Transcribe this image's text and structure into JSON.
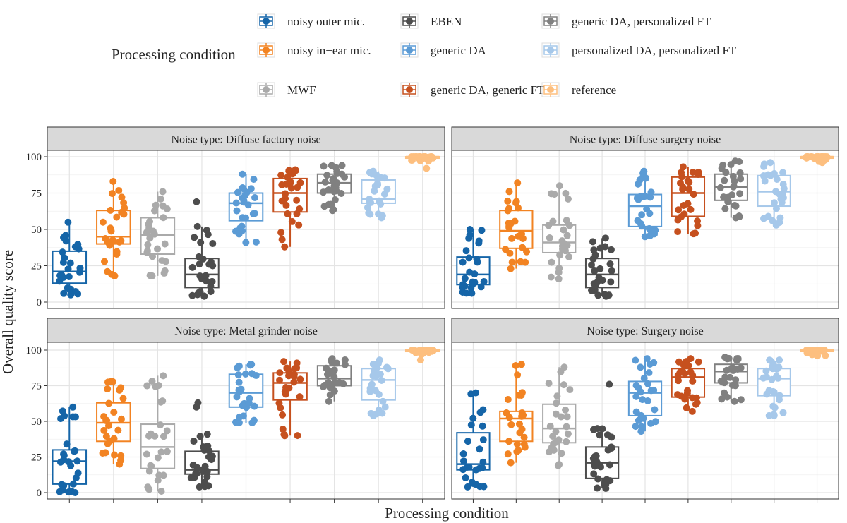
{
  "chart_data": {
    "type": "boxplot",
    "xlabel": "Processing condition",
    "ylabel": "Overall quality score",
    "ylim": [
      0,
      100
    ],
    "yticks": [
      0,
      25,
      50,
      75,
      100
    ],
    "grid": true,
    "legend": {
      "title": "Processing condition",
      "position": "top"
    },
    "conditions": [
      {
        "name": "noisy outer mic.",
        "color": "#1565a8"
      },
      {
        "name": "noisy in−ear mic.",
        "color": "#f28322"
      },
      {
        "name": "MWF",
        "color": "#aaaaaa"
      },
      {
        "name": "EBEN",
        "color": "#4d4d4d"
      },
      {
        "name": "generic DA",
        "color": "#5b9bd5"
      },
      {
        "name": "generic DA, generic FT",
        "color": "#c6501e"
      },
      {
        "name": "generic DA, personalized FT",
        "color": "#808080"
      },
      {
        "name": "personalized DA, personalized FT",
        "color": "#a6c8ea"
      },
      {
        "name": "reference",
        "color": "#fdbf7f"
      }
    ],
    "panels": [
      {
        "title": "Noise type: Diffuse factory noise",
        "boxes": [
          {
            "min": 5,
            "q1": 13,
            "median": 21,
            "q3": 35,
            "max": 55,
            "outliers": []
          },
          {
            "min": 18,
            "q1": 40,
            "median": 45,
            "q3": 63,
            "max": 83,
            "outliers": []
          },
          {
            "min": 18,
            "q1": 33,
            "median": 46,
            "q3": 58,
            "max": 76,
            "outliers": []
          },
          {
            "min": 4,
            "q1": 10,
            "median": 19,
            "q3": 30,
            "max": 52,
            "outliers": [
              69
            ]
          },
          {
            "min": 41,
            "q1": 56,
            "median": 68,
            "q3": 75,
            "max": 88,
            "outliers": []
          },
          {
            "min": 38,
            "q1": 62,
            "median": 75,
            "q3": 85,
            "max": 91,
            "outliers": []
          },
          {
            "min": 63,
            "q1": 75,
            "median": 82,
            "q3": 88,
            "max": 94,
            "outliers": []
          },
          {
            "min": 58,
            "q1": 68,
            "median": 71,
            "q3": 84,
            "max": 90,
            "outliers": []
          },
          {
            "min": 97,
            "q1": 99,
            "median": 100,
            "q3": 100,
            "max": 100,
            "outliers": [
              92
            ]
          }
        ]
      },
      {
        "title": "Noise type: Diffuse surgery noise",
        "boxes": [
          {
            "min": 6,
            "q1": 12,
            "median": 19,
            "q3": 31,
            "max": 50,
            "outliers": []
          },
          {
            "min": 23,
            "q1": 37,
            "median": 49,
            "q3": 63,
            "max": 82,
            "outliers": []
          },
          {
            "min": 16,
            "q1": 34,
            "median": 41,
            "q3": 53,
            "max": 80,
            "outliers": []
          },
          {
            "min": 4,
            "q1": 10,
            "median": 19,
            "q3": 30,
            "max": 44,
            "outliers": []
          },
          {
            "min": 45,
            "q1": 52,
            "median": 66,
            "q3": 74,
            "max": 90,
            "outliers": []
          },
          {
            "min": 47,
            "q1": 59,
            "median": 75,
            "q3": 86,
            "max": 93,
            "outliers": []
          },
          {
            "min": 58,
            "q1": 70,
            "median": 79,
            "q3": 88,
            "max": 97,
            "outliers": []
          },
          {
            "min": 53,
            "q1": 66,
            "median": 76,
            "q3": 87,
            "max": 96,
            "outliers": []
          },
          {
            "min": 96,
            "q1": 99,
            "median": 100,
            "q3": 100,
            "max": 100,
            "outliers": []
          }
        ]
      },
      {
        "title": "Noise type: Metal grinder noise",
        "boxes": [
          {
            "min": 0,
            "q1": 6,
            "median": 22,
            "q3": 30,
            "max": 60,
            "outliers": []
          },
          {
            "min": 20,
            "q1": 36,
            "median": 49,
            "q3": 63,
            "max": 78,
            "outliers": []
          },
          {
            "min": 1,
            "q1": 17,
            "median": 32,
            "q3": 48,
            "max": 82,
            "outliers": []
          },
          {
            "min": 4,
            "q1": 13,
            "median": 16,
            "q3": 29,
            "max": 41,
            "outliers": [
              60,
              63
            ]
          },
          {
            "min": 49,
            "q1": 60,
            "median": 70,
            "q3": 83,
            "max": 90,
            "outliers": []
          },
          {
            "min": 40,
            "q1": 65,
            "median": 77,
            "q3": 84,
            "max": 92,
            "outliers": []
          },
          {
            "min": 64,
            "q1": 75,
            "median": 80,
            "q3": 89,
            "max": 94,
            "outliers": []
          },
          {
            "min": 54,
            "q1": 65,
            "median": 79,
            "q3": 87,
            "max": 93,
            "outliers": []
          },
          {
            "min": 97,
            "q1": 99,
            "median": 100,
            "q3": 100,
            "max": 100,
            "outliers": [
              93
            ]
          }
        ]
      },
      {
        "title": "Noise type: Surgery noise",
        "boxes": [
          {
            "min": 4,
            "q1": 16,
            "median": 20,
            "q3": 42,
            "max": 70,
            "outliers": []
          },
          {
            "min": 21,
            "q1": 36,
            "median": 52,
            "q3": 57,
            "max": 90,
            "outliers": []
          },
          {
            "min": 19,
            "q1": 35,
            "median": 45,
            "q3": 62,
            "max": 88,
            "outliers": []
          },
          {
            "min": 3,
            "q1": 10,
            "median": 21,
            "q3": 32,
            "max": 45,
            "outliers": [
              76
            ]
          },
          {
            "min": 43,
            "q1": 54,
            "median": 70,
            "q3": 78,
            "max": 94,
            "outliers": []
          },
          {
            "min": 57,
            "q1": 67,
            "median": 81,
            "q3": 87,
            "max": 94,
            "outliers": []
          },
          {
            "min": 64,
            "q1": 77,
            "median": 85,
            "q3": 90,
            "max": 95,
            "outliers": []
          },
          {
            "min": 54,
            "q1": 68,
            "median": 80,
            "q3": 87,
            "max": 93,
            "outliers": []
          },
          {
            "min": 96,
            "q1": 99,
            "median": 100,
            "q3": 100,
            "max": 100,
            "outliers": []
          }
        ]
      }
    ]
  }
}
